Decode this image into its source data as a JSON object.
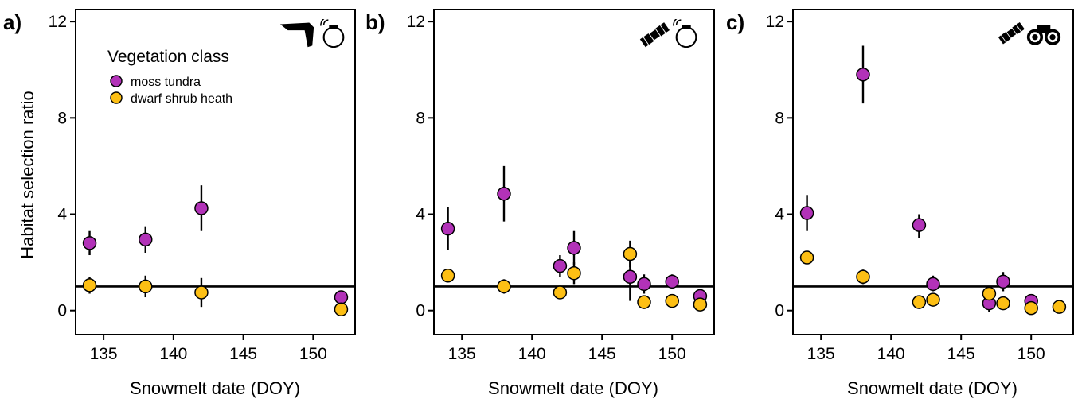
{
  "y_axis_label": "Habitat selection ratio",
  "legend": {
    "title": "Vegetation class",
    "entries": [
      {
        "label": "moss tundra",
        "color": "#B232B8"
      },
      {
        "label": "dwarf shrub heath",
        "color": "#FDBF14"
      }
    ]
  },
  "icons": {
    "a": [
      "drone-icon",
      "gps-collar-icon"
    ],
    "b": [
      "satellite-icon",
      "gps-collar-icon"
    ],
    "c": [
      "satellite-icon",
      "binoculars-icon"
    ]
  },
  "chart_data": [
    {
      "panel_label": "a)",
      "type": "scatter",
      "xlabel": "Snowmelt date (DOY)",
      "ylabel": "Habitat selection ratio",
      "xlim": [
        133,
        153
      ],
      "ylim": [
        -1,
        12.5
      ],
      "xticks": [
        135,
        140,
        145,
        150
      ],
      "yticks": [
        0,
        4,
        8,
        12
      ],
      "reference_line_y": 1,
      "grid": false,
      "legend_position": "top-left",
      "series": [
        {
          "name": "moss tundra",
          "color": "#B232B8",
          "points": [
            {
              "x": 134,
              "y": 2.8,
              "lo": 2.3,
              "hi": 3.3
            },
            {
              "x": 138,
              "y": 2.95,
              "lo": 2.4,
              "hi": 3.5
            },
            {
              "x": 142,
              "y": 4.25,
              "lo": 3.3,
              "hi": 5.2
            },
            {
              "x": 152,
              "y": 0.55,
              "lo": 0.5,
              "hi": 0.6
            }
          ]
        },
        {
          "name": "dwarf shrub heath",
          "color": "#FDBF14",
          "points": [
            {
              "x": 134,
              "y": 1.05,
              "lo": 0.7,
              "hi": 1.4
            },
            {
              "x": 138,
              "y": 1.0,
              "lo": 0.55,
              "hi": 1.45
            },
            {
              "x": 142,
              "y": 0.75,
              "lo": 0.15,
              "hi": 1.35
            },
            {
              "x": 152,
              "y": 0.05,
              "lo": 0.0,
              "hi": 0.1
            }
          ]
        }
      ]
    },
    {
      "panel_label": "b)",
      "type": "scatter",
      "xlabel": "Snowmelt date (DOY)",
      "ylabel": "",
      "xlim": [
        133,
        153
      ],
      "ylim": [
        -1,
        12.5
      ],
      "xticks": [
        135,
        140,
        145,
        150
      ],
      "yticks": [
        0,
        4,
        8,
        12
      ],
      "reference_line_y": 1,
      "grid": false,
      "series": [
        {
          "name": "moss tundra",
          "color": "#B232B8",
          "points": [
            {
              "x": 134,
              "y": 3.4,
              "lo": 2.5,
              "hi": 4.3
            },
            {
              "x": 138,
              "y": 4.85,
              "lo": 3.7,
              "hi": 6.0
            },
            {
              "x": 142,
              "y": 1.85,
              "lo": 1.4,
              "hi": 2.3
            },
            {
              "x": 143,
              "y": 2.6,
              "lo": 1.9,
              "hi": 3.3
            },
            {
              "x": 147,
              "y": 1.4,
              "lo": 0.4,
              "hi": 2.4
            },
            {
              "x": 148,
              "y": 1.1,
              "lo": 0.7,
              "hi": 1.5
            },
            {
              "x": 150,
              "y": 1.2,
              "lo": 0.9,
              "hi": 1.5
            },
            {
              "x": 152,
              "y": 0.6,
              "lo": 0.5,
              "hi": 0.7
            }
          ]
        },
        {
          "name": "dwarf shrub heath",
          "color": "#FDBF14",
          "points": [
            {
              "x": 134,
              "y": 1.45,
              "lo": 1.3,
              "hi": 1.6
            },
            {
              "x": 138,
              "y": 1.0,
              "lo": 0.7,
              "hi": 1.3
            },
            {
              "x": 142,
              "y": 0.75,
              "lo": 0.6,
              "hi": 0.9
            },
            {
              "x": 143,
              "y": 1.55,
              "lo": 1.1,
              "hi": 2.0
            },
            {
              "x": 147,
              "y": 2.35,
              "lo": 1.8,
              "hi": 2.9
            },
            {
              "x": 148,
              "y": 0.35,
              "lo": 0.25,
              "hi": 0.45
            },
            {
              "x": 150,
              "y": 0.4,
              "lo": 0.3,
              "hi": 0.5
            },
            {
              "x": 152,
              "y": 0.25,
              "lo": 0.15,
              "hi": 0.35
            }
          ]
        }
      ]
    },
    {
      "panel_label": "c)",
      "type": "scatter",
      "xlabel": "Snowmelt date (DOY)",
      "ylabel": "",
      "xlim": [
        133,
        153
      ],
      "ylim": [
        -1,
        12.5
      ],
      "xticks": [
        135,
        140,
        145,
        150
      ],
      "yticks": [
        0,
        4,
        8,
        12
      ],
      "reference_line_y": 1,
      "grid": false,
      "series": [
        {
          "name": "moss tundra",
          "color": "#B232B8",
          "points": [
            {
              "x": 134,
              "y": 4.05,
              "lo": 3.3,
              "hi": 4.8
            },
            {
              "x": 138,
              "y": 9.8,
              "lo": 8.6,
              "hi": 11.0
            },
            {
              "x": 142,
              "y": 3.55,
              "lo": 3.0,
              "hi": 4.0
            },
            {
              "x": 143,
              "y": 1.1,
              "lo": 0.8,
              "hi": 1.45
            },
            {
              "x": 147,
              "y": 0.3,
              "lo": -0.05,
              "hi": 0.6
            },
            {
              "x": 148,
              "y": 1.2,
              "lo": 0.8,
              "hi": 1.6
            },
            {
              "x": 150,
              "y": 0.4,
              "lo": 0.3,
              "hi": 0.5
            }
          ]
        },
        {
          "name": "dwarf shrub heath",
          "color": "#FDBF14",
          "points": [
            {
              "x": 134,
              "y": 2.2,
              "lo": 2.1,
              "hi": 2.3
            },
            {
              "x": 138,
              "y": 1.4,
              "lo": 1.1,
              "hi": 1.7
            },
            {
              "x": 142,
              "y": 0.35,
              "lo": 0.25,
              "hi": 0.45
            },
            {
              "x": 143,
              "y": 0.45,
              "lo": 0.3,
              "hi": 0.6
            },
            {
              "x": 147,
              "y": 0.7,
              "lo": 0.55,
              "hi": 0.85
            },
            {
              "x": 148,
              "y": 0.3,
              "lo": 0.2,
              "hi": 0.4
            },
            {
              "x": 150,
              "y": 0.1,
              "lo": 0.0,
              "hi": 0.2
            },
            {
              "x": 152,
              "y": 0.15,
              "lo": 0.05,
              "hi": 0.25
            }
          ]
        }
      ]
    }
  ]
}
